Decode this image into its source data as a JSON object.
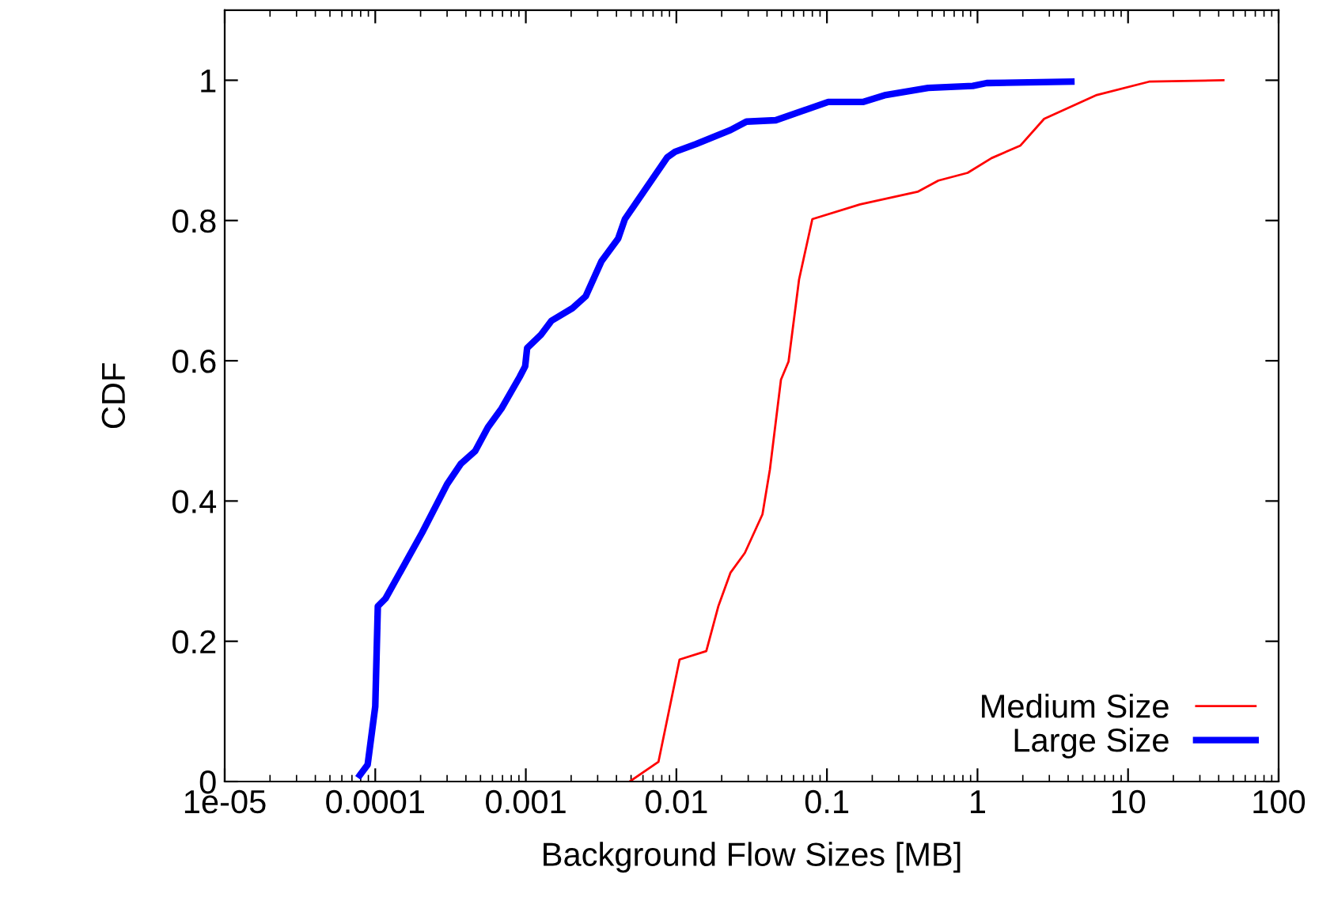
{
  "chart_data": {
    "type": "line",
    "xlabel": "Background Flow Sizes [MB]",
    "ylabel": "CDF",
    "log": "x",
    "xlim": [
      1e-05,
      100
    ],
    "xticks": [
      {
        "value": 1e-05,
        "label": "1e-05"
      },
      {
        "value": 0.0001,
        "label": "0.0001"
      },
      {
        "value": 0.001,
        "label": "0.001"
      },
      0.01,
      0.1,
      1,
      10,
      100
    ],
    "ylim": [
      0,
      1.1
    ],
    "yticks": [
      0,
      0.2,
      0.4,
      0.6,
      0.8,
      1
    ],
    "grid": false,
    "legend": "bottom right",
    "marker": "none",
    "line_style": "solid",
    "series": [
      {
        "name": "Medium Size",
        "color": "#ff0000",
        "x": [
          0.0049,
          0.0076,
          0.0105,
          0.0158,
          0.019,
          0.0229,
          0.0285,
          0.0373,
          0.0418,
          0.0495,
          0.0556,
          0.0653,
          0.08,
          0.166,
          0.4,
          0.55,
          0.86,
          1.24,
          1.93,
          2.77,
          6.2,
          13.8,
          43
        ],
        "values": [
          0.0,
          0.028,
          0.174,
          0.186,
          0.25,
          0.298,
          0.326,
          0.381,
          0.445,
          0.573,
          0.599,
          0.716,
          0.802,
          0.823,
          0.841,
          0.857,
          0.868,
          0.889,
          0.907,
          0.945,
          0.979,
          0.998,
          1.0
        ]
      },
      {
        "name": "Large Size",
        "color": "#0000ff",
        "x": [
          7.9e-05,
          8.9e-05,
          0.0001,
          0.000104,
          0.000117,
          0.000205,
          0.0003,
          0.00037,
          0.00046,
          0.00056,
          0.00069,
          0.00091,
          0.00099,
          0.00102,
          0.00126,
          0.00148,
          0.00204,
          0.0025,
          0.00318,
          0.0041,
          0.00455,
          0.0087,
          0.0098,
          0.0135,
          0.0229,
          0.0292,
          0.0457,
          0.102,
          0.173,
          0.246,
          0.47,
          0.93,
          1.15,
          4.2
        ],
        "values": [
          0.009,
          0.024,
          0.107,
          0.25,
          0.261,
          0.355,
          0.424,
          0.453,
          0.471,
          0.505,
          0.532,
          0.577,
          0.592,
          0.618,
          0.637,
          0.657,
          0.675,
          0.692,
          0.742,
          0.774,
          0.802,
          0.89,
          0.898,
          0.909,
          0.929,
          0.941,
          0.943,
          0.969,
          0.969,
          0.979,
          0.989,
          0.992,
          0.996,
          0.998
        ]
      }
    ]
  }
}
